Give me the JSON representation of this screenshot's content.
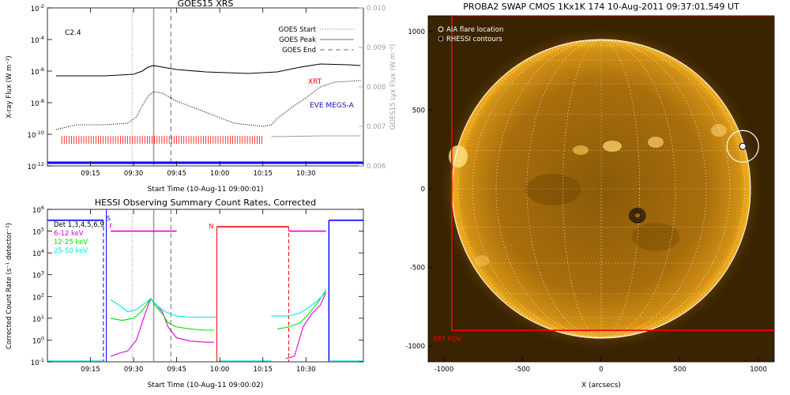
{
  "colors": {
    "red": "#ff0000",
    "magenta": "#e000e0",
    "green": "#00e000",
    "cyan": "#00e8e8",
    "blue": "#0000ff",
    "darkblue": "#1010c0",
    "gray": "#a0a0a0",
    "sun": "#e8a010",
    "sunbg": "#3a2300"
  },
  "chart_data": [
    {
      "type": "line",
      "title": "GOES15 XRS",
      "xlabel": "Start Time (10-Aug-11 09:00:01)",
      "ylabel": "X-ray Flux (W m⁻²)",
      "ylabel_right": "GOES15 Lyx Flux (W m⁻²)",
      "xlim_minutes": [
        0,
        110
      ],
      "xticks": [
        {
          "t": 15,
          "label": "09:15"
        },
        {
          "t": 30,
          "label": "09:30"
        },
        {
          "t": 45,
          "label": "09:45"
        },
        {
          "t": 60,
          "label": "10:00"
        },
        {
          "t": 75,
          "label": "10:15"
        },
        {
          "t": 90,
          "label": "10:30"
        }
      ],
      "ylim_log10": [
        -12,
        -2
      ],
      "yticks_exp": [
        -12,
        -10,
        -8,
        -6,
        -4,
        -2
      ],
      "ytick_base": "10",
      "ylim_right": [
        0.006,
        0.01
      ],
      "yticks_right": [
        "0.006",
        "0.007",
        "0.008",
        "0.009",
        "0.010"
      ],
      "flare_class": "C2.4",
      "legend": [
        {
          "label": "GOES Start",
          "style": "dotted"
        },
        {
          "label": "GOES Peak",
          "style": "solid"
        },
        {
          "label": "GOES End",
          "style": "dashed"
        }
      ],
      "events_minutes": {
        "start": 29.5,
        "peak": 37,
        "end": 43
      },
      "annotations": {
        "xrt": "XRT",
        "eve": "EVE MEGS-A"
      },
      "series": [
        {
          "name": "GOES long",
          "style": "solid",
          "color": "#000000",
          "points": [
            [
              3,
              -6.3
            ],
            [
              20,
              -6.3
            ],
            [
              30,
              -6.2
            ],
            [
              33,
              -6.0
            ],
            [
              35,
              -5.75
            ],
            [
              37,
              -5.65
            ],
            [
              40,
              -5.75
            ],
            [
              45,
              -5.9
            ],
            [
              55,
              -6.05
            ],
            [
              70,
              -6.15
            ],
            [
              80,
              -6.05
            ],
            [
              88,
              -5.75
            ],
            [
              95,
              -5.55
            ],
            [
              105,
              -5.6
            ],
            [
              109,
              -5.65
            ]
          ]
        },
        {
          "name": "GOES short",
          "style": "dotted",
          "color": "#000000",
          "points": [
            [
              3,
              -9.7
            ],
            [
              10,
              -9.4
            ],
            [
              20,
              -9.4
            ],
            [
              28,
              -9.3
            ],
            [
              31,
              -8.9
            ],
            [
              33,
              -8.2
            ],
            [
              35,
              -7.6
            ],
            [
              37,
              -7.3
            ],
            [
              40,
              -7.4
            ],
            [
              45,
              -7.9
            ],
            [
              55,
              -8.6
            ],
            [
              65,
              -9.3
            ],
            [
              75,
              -9.5
            ],
            [
              78,
              -9.4
            ],
            [
              80,
              -9.0
            ],
            [
              85,
              -8.3
            ],
            [
              90,
              -7.7
            ],
            [
              95,
              -7.0
            ],
            [
              100,
              -6.7
            ],
            [
              109,
              -6.6
            ]
          ]
        },
        {
          "name": "EVE MEGS-A Lya",
          "style": "solid",
          "color": "#a0a0a0",
          "points": [
            [
              78,
              -10.15
            ],
            [
              95,
              -10.1
            ],
            [
              109,
              -10.1
            ]
          ]
        },
        {
          "name": "baseline",
          "style": "solid",
          "color": "#0000ff",
          "points": [
            [
              -6,
              -11.8
            ],
            [
              110,
              -11.8
            ]
          ]
        }
      ],
      "xrt_intervals_minutes": [
        5,
        75
      ]
    },
    {
      "type": "line",
      "title": "HESSI Observing Summary Count Rates, Corrected",
      "xlabel": "Start Time (10-Aug-11 09:00:02)",
      "ylabel": "Corrected Count Rate (s⁻¹ detector⁻¹)",
      "xlim_minutes": [
        0,
        110
      ],
      "xticks": [
        {
          "t": 15,
          "label": "09:15"
        },
        {
          "t": 30,
          "label": "09:30"
        },
        {
          "t": 45,
          "label": "09:45"
        },
        {
          "t": 60,
          "label": "10:00"
        },
        {
          "t": 75,
          "label": "10:15"
        },
        {
          "t": 90,
          "label": "10:30"
        }
      ],
      "ylim_log10": [
        -1,
        6
      ],
      "yticks_exp": [
        -1,
        0,
        1,
        2,
        3,
        4,
        5,
        6
      ],
      "ytick_base": "10",
      "legend": [
        {
          "label": "Det 1,3,4,5,6,9",
          "color": "#000000"
        },
        {
          "label": "6-12 keV",
          "color": "#e000e0"
        },
        {
          "label": "12-25 keV",
          "color": "#00e000"
        },
        {
          "label": "25-50 keV",
          "color": "#00e8e8"
        }
      ],
      "flags": [
        {
          "label": "S",
          "t": 20
        },
        {
          "label": "F",
          "t": 21
        },
        {
          "label": "N",
          "t": 59
        }
      ],
      "events_minutes": {
        "start": 29.5,
        "peak": 37,
        "end": 43
      },
      "segments": [
        {
          "name": "6-12 keV",
          "color": "#e000e0",
          "points": [
            [
              22,
              -0.75
            ],
            [
              25,
              -0.6
            ],
            [
              28,
              -0.5
            ],
            [
              31,
              0.0
            ],
            [
              34,
              1.2
            ],
            [
              36,
              1.9
            ],
            [
              38,
              1.6
            ],
            [
              40,
              1.3
            ],
            [
              42,
              0.6
            ],
            [
              45,
              0.1
            ],
            [
              50,
              -0.05
            ],
            [
              55,
              -0.1
            ],
            [
              58,
              -0.1
            ]
          ]
        },
        {
          "name": "6-12 keV",
          "color": "#e000e0",
          "points": [
            [
              83,
              -0.85
            ],
            [
              86,
              -0.75
            ],
            [
              89,
              0.6
            ],
            [
              92,
              1.2
            ],
            [
              95,
              1.6
            ],
            [
              97,
              2.2
            ]
          ]
        },
        {
          "name": "12-25 keV",
          "color": "#00e000",
          "points": [
            [
              22,
              1.0
            ],
            [
              26,
              0.9
            ],
            [
              30,
              1.0
            ],
            [
              33,
              1.35
            ],
            [
              36,
              1.9
            ],
            [
              38,
              1.5
            ],
            [
              40,
              1.2
            ],
            [
              42,
              0.8
            ],
            [
              45,
              0.6
            ],
            [
              50,
              0.5
            ],
            [
              55,
              0.45
            ],
            [
              58,
              0.45
            ]
          ]
        },
        {
          "name": "12-25 keV",
          "color": "#00e000",
          "points": [
            [
              80,
              0.5
            ],
            [
              84,
              0.6
            ],
            [
              88,
              0.8
            ],
            [
              91,
              1.2
            ],
            [
              94,
              1.7
            ],
            [
              97,
              2.3
            ]
          ]
        },
        {
          "name": "25-50 keV",
          "color": "#00e8e8",
          "points": [
            [
              22,
              1.85
            ],
            [
              25,
              1.6
            ],
            [
              28,
              1.3
            ],
            [
              31,
              1.4
            ],
            [
              34,
              1.7
            ],
            [
              36,
              1.9
            ],
            [
              38,
              1.6
            ],
            [
              41,
              1.3
            ],
            [
              45,
              1.1
            ],
            [
              50,
              1.05
            ],
            [
              55,
              1.05
            ],
            [
              59,
              1.05
            ]
          ]
        },
        {
          "name": "25-50 keV",
          "color": "#00e8e8",
          "points": [
            [
              78,
              1.1
            ],
            [
              84,
              1.1
            ],
            [
              88,
              1.25
            ],
            [
              91,
              1.5
            ],
            [
              94,
              1.8
            ],
            [
              97,
              2.2
            ]
          ]
        },
        {
          "name": "Det 1,3,4,5,6,9 (red)",
          "color": "#ff0000",
          "points": [
            [
              59,
              5.2
            ],
            [
              84,
              5.2
            ]
          ]
        },
        {
          "name": "Det 1,3,4,5,6,9 (magenta)",
          "color": "#e000e0",
          "points": [
            [
              22,
              5.0
            ],
            [
              45,
              5.0
            ]
          ]
        },
        {
          "name": "Det 1,3,4,5,6,9 (magenta 2)",
          "color": "#e000e0",
          "points": [
            [
              84,
              5.0
            ],
            [
              97,
              5.0
            ]
          ]
        },
        {
          "name": "Det 1,3,4,5,6,9 (blue)",
          "color": "#0000ff",
          "points": [
            [
              -6,
              5.5
            ],
            [
              19.5,
              5.5
            ]
          ]
        },
        {
          "name": "Det 1,3,4,5,6,9 (blue 2)",
          "color": "#0000ff",
          "points": [
            [
              98,
              5.5
            ],
            [
              110,
              5.5
            ]
          ]
        }
      ]
    },
    {
      "type": "image",
      "title": "PROBA2 SWAP CMOS 1Kx1K 174 10-Aug-2011 09:37:01.549 UT",
      "xlabel": "X (arcsecs)",
      "ylabel": "",
      "xlim": [
        -1100,
        1100
      ],
      "ylim": [
        -1100,
        1100
      ],
      "xticks": [
        -1000,
        -500,
        0,
        500,
        1000
      ],
      "yticks": [
        -1000,
        -500,
        0,
        500,
        1000
      ],
      "solar_radius_arcsec": 945,
      "legend": [
        {
          "label": "AIA flare location",
          "marker": "circle-open"
        },
        {
          "label": "RHESSI contours",
          "marker": "circle-filled"
        }
      ],
      "flare_location": [
        900,
        270
      ],
      "rhessi_contour_center": [
        230,
        -170
      ],
      "xrt_fov": {
        "x0": -950,
        "y0": -900,
        "x1": 1100,
        "y1": 1100,
        "label": "XRT FOV"
      }
    }
  ]
}
